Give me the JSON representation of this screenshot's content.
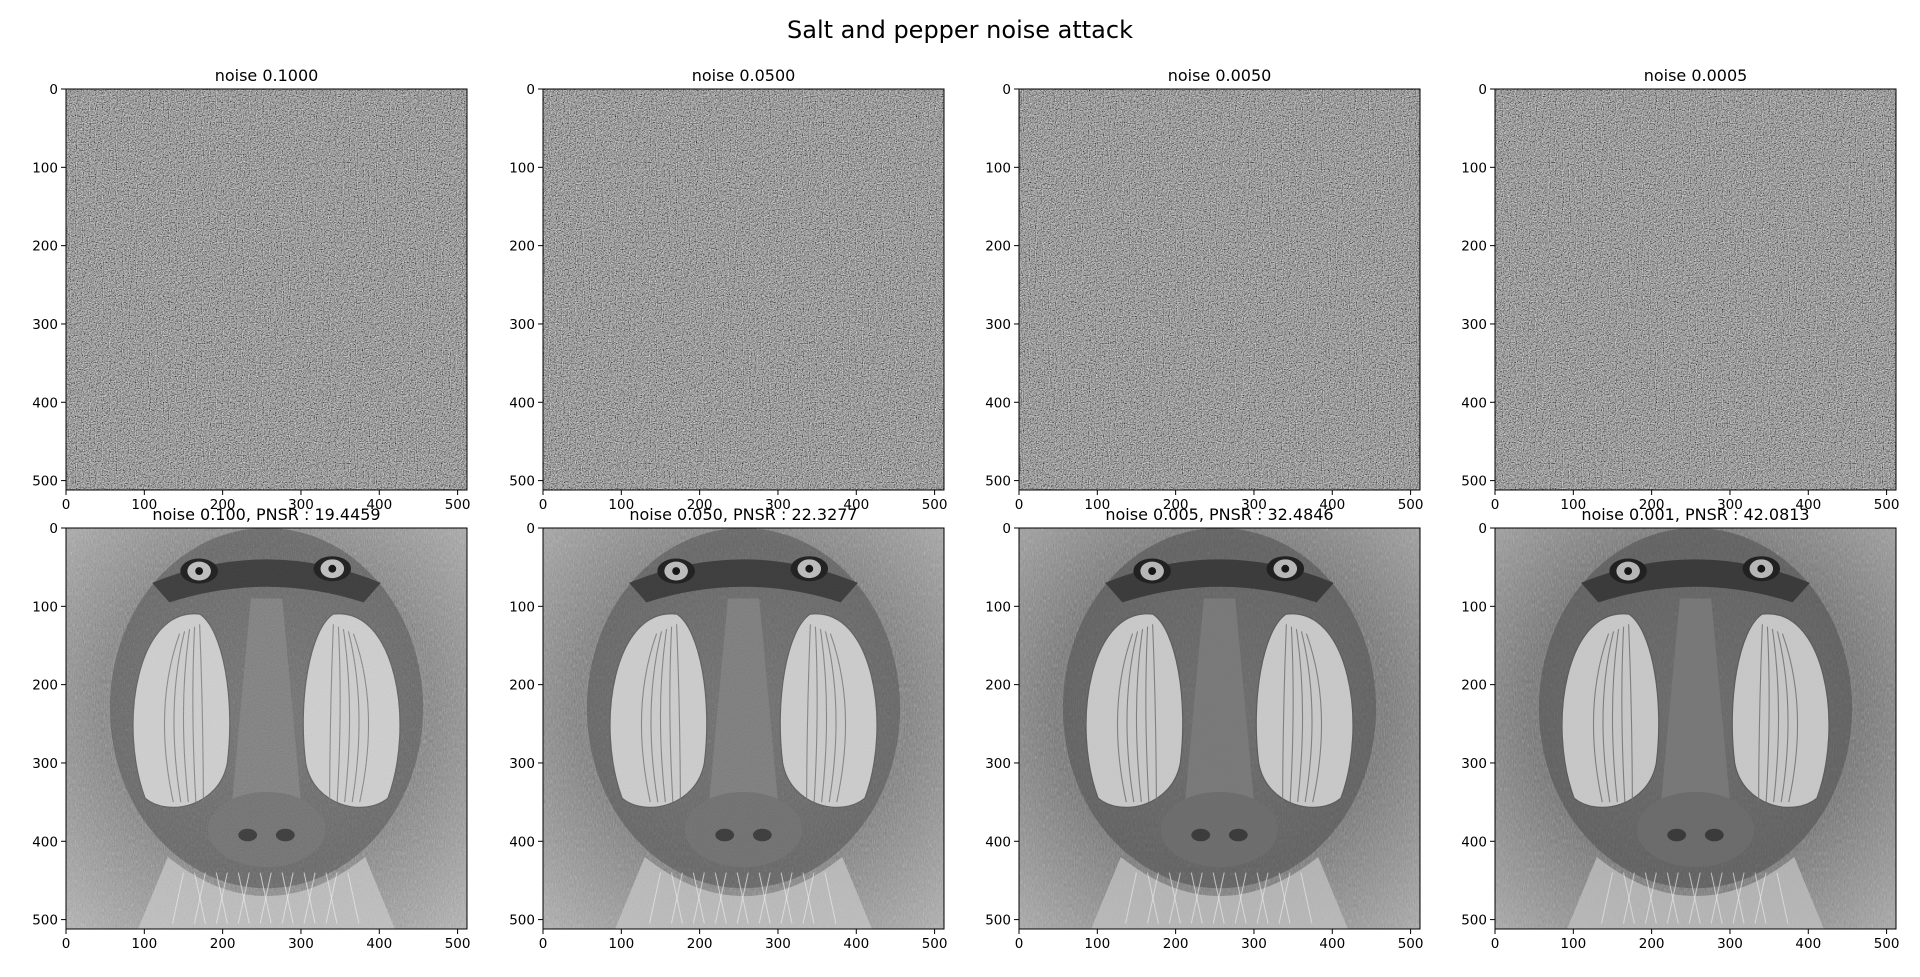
{
  "chart_data": {
    "type": "image-grid",
    "title": "Salt and pepper noise attack",
    "rows": 2,
    "cols": 4,
    "axes": {
      "xlim": [
        0,
        512
      ],
      "ylim": [
        512,
        0
      ],
      "xticks": [
        0,
        100,
        200,
        300,
        400,
        500
      ],
      "yticks": [
        0,
        100,
        200,
        300,
        400,
        500
      ]
    },
    "panels": [
      {
        "row": 0,
        "col": 0,
        "title": "noise 0.1000",
        "content": "noise",
        "noise_level": 0.1
      },
      {
        "row": 0,
        "col": 1,
        "title": "noise 0.0500",
        "content": "noise",
        "noise_level": 0.05
      },
      {
        "row": 0,
        "col": 2,
        "title": "noise 0.0050",
        "content": "noise",
        "noise_level": 0.005
      },
      {
        "row": 0,
        "col": 3,
        "title": "noise 0.0005",
        "content": "noise",
        "noise_level": 0.0005
      },
      {
        "row": 1,
        "col": 0,
        "title": "noise 0.100, PNSR : 19.4459",
        "content": "mandrill",
        "noise_level": 0.1,
        "psnr": 19.4459
      },
      {
        "row": 1,
        "col": 1,
        "title": "noise 0.050, PNSR : 22.3277",
        "content": "mandrill",
        "noise_level": 0.05,
        "psnr": 22.3277
      },
      {
        "row": 1,
        "col": 2,
        "title": "noise 0.005, PNSR : 32.4846",
        "content": "mandrill",
        "noise_level": 0.005,
        "psnr": 32.4846
      },
      {
        "row": 1,
        "col": 3,
        "title": "noise 0.001, PNSR : 42.0813",
        "content": "mandrill",
        "noise_level": 0.001,
        "psnr": 42.0813
      }
    ]
  }
}
